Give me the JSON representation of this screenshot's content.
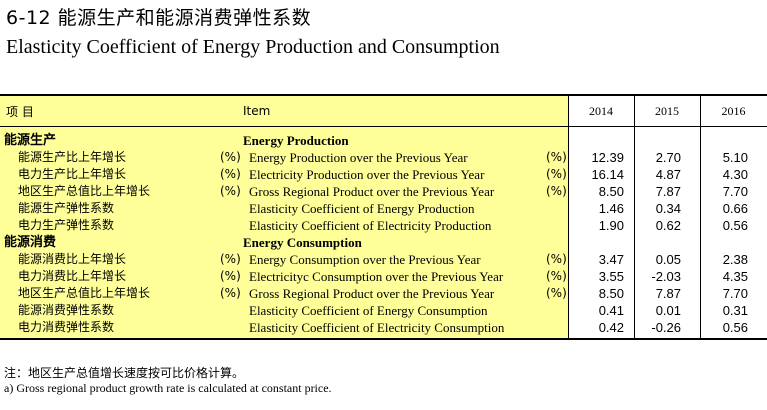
{
  "title_cn": "6-12  能源生产和能源消费弹性系数",
  "title_en": "Elasticity Coefficient of Energy Production and Consumption",
  "header": {
    "item_cn": "项    目",
    "item_en": "Item",
    "years": [
      "2014",
      "2015",
      "2016"
    ]
  },
  "sections": [
    {
      "title_cn": "能源生产",
      "title_en": "Energy Production",
      "rows": [
        {
          "cn": "能源生产比上年增长",
          "unit_cn": "(%)",
          "en": "Energy Production over the Previous Year",
          "unit_en": "(%)",
          "values": [
            "12.39",
            "2.70",
            "5.10"
          ]
        },
        {
          "cn": "电力生产比上年增长",
          "unit_cn": "(%)",
          "en": "Electricity Production over the Previous Year",
          "unit_en": "(%)",
          "values": [
            "16.14",
            "4.87",
            "4.30"
          ]
        },
        {
          "cn": "地区生产总值比上年增长",
          "unit_cn": "(%)",
          "en": "Gross Regional Product over the Previous Year",
          "unit_en": "(%)",
          "values": [
            "8.50",
            "7.87",
            "7.70"
          ]
        },
        {
          "cn": "能源生产弹性系数",
          "unit_cn": "",
          "en": "Elasticity Coefficient of  Energy Production",
          "unit_en": "",
          "values": [
            "1.46",
            "0.34",
            "0.66"
          ]
        },
        {
          "cn": "电力生产弹性系数",
          "unit_cn": "",
          "en": "Elasticity Coefficient of Electricity Production",
          "unit_en": "",
          "values": [
            "1.90",
            "0.62",
            "0.56"
          ]
        }
      ]
    },
    {
      "title_cn": "能源消费",
      "title_en": "Energy Consumption",
      "rows": [
        {
          "cn": "能源消费比上年增长",
          "unit_cn": "(%)",
          "en": "Energy Consumption over the Previous Year",
          "unit_en": "(%)",
          "values": [
            "3.47",
            "0.05",
            "2.38"
          ]
        },
        {
          "cn": "电力消费比上年增长",
          "unit_cn": "(%)",
          "en": "Electricityc Consumption over the Previous Year",
          "unit_en": "(%)",
          "values": [
            "3.55",
            "-2.03",
            "4.35"
          ]
        },
        {
          "cn": "地区生产总值比上年增长",
          "unit_cn": "(%)",
          "en": "Gross Regional Product over the Previous Year",
          "unit_en": "(%)",
          "values": [
            "8.50",
            "7.87",
            "7.70"
          ]
        },
        {
          "cn": "能源消费弹性系数",
          "unit_cn": "",
          "en": "Elasticity Coefficient of  Energy Consumption",
          "unit_en": "",
          "values": [
            "0.41",
            "0.01",
            "0.31"
          ]
        },
        {
          "cn": "电力消费弹性系数",
          "unit_cn": "",
          "en": "Elasticity Coefficient of Electricity Consumption",
          "unit_en": "",
          "values": [
            "0.42",
            "-0.26",
            "0.56"
          ]
        }
      ]
    }
  ],
  "notes": {
    "cn": "注：地区生产总值增长速度按可比价格计算。",
    "en": "a) Gross regional product  growth rate is calculated at constant price."
  },
  "colors": {
    "highlight": "#ffff99",
    "rule": "#000000"
  }
}
